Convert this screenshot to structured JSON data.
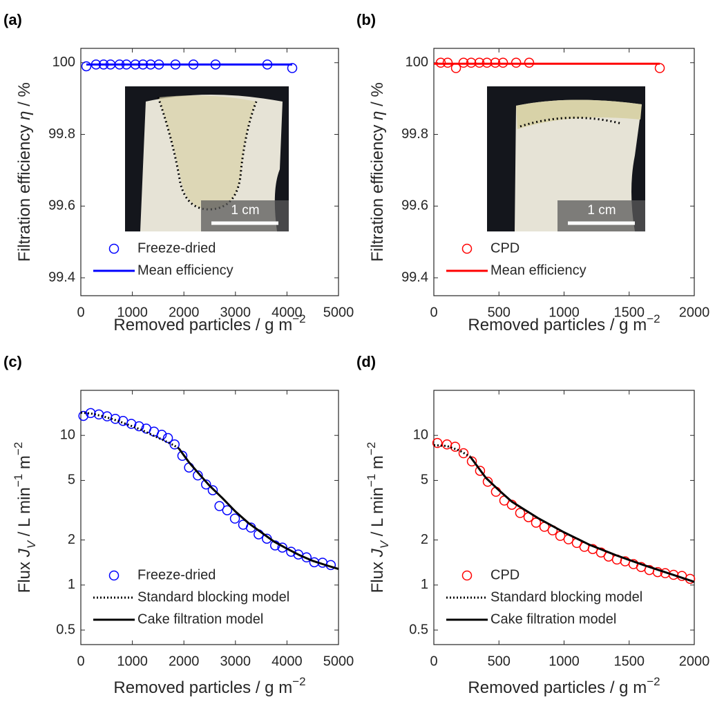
{
  "chart_data": [
    {
      "type": "line",
      "label": "(a)",
      "xlabel": [
        {
          "text": "Removed particles / g m"
        },
        {
          "text": "−2",
          "style": "sup"
        }
      ],
      "ylabel": [
        {
          "text": "Filtration efficiency "
        },
        {
          "text": "η",
          "style": "italic"
        },
        {
          "text": " / %"
        }
      ],
      "xlim": [
        0,
        5000
      ],
      "xticks": [
        0,
        1000,
        2000,
        3000,
        4000,
        5000
      ],
      "ylim": [
        99.35,
        100.04
      ],
      "yticks": [
        99.4,
        99.6,
        99.8,
        100
      ],
      "legend": "lower left",
      "inset": {
        "scale_label": "1 cm",
        "cut": "u"
      },
      "series": [
        {
          "name": "Freeze-dried",
          "color": "#0000ff",
          "marker": "circle",
          "x": [
            107,
            295,
            442,
            576,
            751,
            885,
            1059,
            1206,
            1354,
            1515,
            1836,
            2185,
            2614,
            3619,
            4102
          ],
          "values": [
            99.99,
            99.995,
            99.995,
            99.995,
            99.995,
            99.995,
            99.995,
            99.995,
            99.995,
            99.995,
            99.995,
            99.995,
            99.995,
            99.995,
            99.985
          ]
        },
        {
          "name": "Mean efficiency",
          "color": "#0000ff",
          "line": "solid",
          "x": [
            107,
            4102
          ],
          "values": [
            99.995,
            99.995
          ]
        }
      ]
    },
    {
      "type": "line",
      "label": "(b)",
      "xlabel": [
        {
          "text": "Removed particles / g m"
        },
        {
          "text": "−2",
          "style": "sup"
        }
      ],
      "ylabel": [
        {
          "text": "Filtration efficiency "
        },
        {
          "text": "η",
          "style": "italic"
        },
        {
          "text": " / %"
        }
      ],
      "xlim": [
        0,
        2000
      ],
      "xticks": [
        0,
        500,
        1000,
        1500,
        2000
      ],
      "ylim": [
        99.35,
        100.04
      ],
      "yticks": [
        99.4,
        99.6,
        99.8,
        100
      ],
      "legend": "lower left",
      "inset": {
        "scale_label": "1 cm",
        "cut": "flat"
      },
      "series": [
        {
          "name": "CPD",
          "color": "#ff0000",
          "marker": "circle",
          "x": [
            53,
            106,
            170,
            228,
            287,
            350,
            408,
            472,
            531,
            632,
            732,
            1735
          ],
          "values": [
            100,
            100,
            99.985,
            100,
            100,
            100,
            100,
            100,
            100,
            100,
            100,
            99.985
          ]
        },
        {
          "name": "Mean efficiency",
          "color": "#ff0000",
          "line": "solid",
          "x": [
            0,
            1735
          ],
          "values": [
            99.997,
            99.997
          ]
        }
      ]
    },
    {
      "type": "line",
      "label": "(c)",
      "xlabel": [
        {
          "text": "Removed particles / g m"
        },
        {
          "text": "−2",
          "style": "sup"
        }
      ],
      "ylabel": [
        {
          "text": "Flux "
        },
        {
          "text": "J",
          "style": "italic"
        },
        {
          "text": "V",
          "style": "sub-italic"
        },
        {
          "text": " / L min"
        },
        {
          "text": "−1",
          "style": "sup"
        },
        {
          "text": " m"
        },
        {
          "text": "−2",
          "style": "sup"
        }
      ],
      "xlim": [
        0,
        5000
      ],
      "xticks": [
        0,
        1000,
        2000,
        3000,
        4000,
        5000
      ],
      "yscale": "log",
      "ylim": [
        0.4,
        20
      ],
      "yticks": [
        0.5,
        1,
        2,
        5,
        10
      ],
      "legend": "lower left",
      "series": [
        {
          "name": "Freeze-dried",
          "color": "#0000ff",
          "marker": "circle",
          "x": [
            50,
            190,
            350,
            510,
            670,
            820,
            980,
            1130,
            1270,
            1420,
            1570,
            1690,
            1820,
            1970,
            2100,
            2270,
            2430,
            2560,
            2690,
            2840,
            2990,
            3150,
            3300,
            3450,
            3610,
            3770,
            3910,
            4080,
            4220,
            4380,
            4530,
            4690,
            4850
          ],
          "values": [
            13.5,
            14.1,
            13.8,
            13.4,
            12.9,
            12.5,
            11.95,
            11.5,
            11.1,
            10.6,
            10.1,
            9.6,
            8.7,
            7.3,
            6.1,
            5.4,
            4.7,
            4.3,
            3.37,
            3.16,
            2.78,
            2.53,
            2.42,
            2.18,
            2.04,
            1.84,
            1.78,
            1.67,
            1.6,
            1.53,
            1.42,
            1.41,
            1.36
          ]
        },
        {
          "name": "Standard blocking model",
          "color": "#000000",
          "line": "dotted",
          "x": [
            0,
            200,
            400,
            600,
            800,
            1000,
            1200,
            1400,
            1600,
            1800,
            1900
          ],
          "values": [
            14.2,
            14.0,
            13.5,
            12.9,
            12.2,
            11.5,
            10.8,
            10.0,
            9.3,
            8.6,
            8.2
          ]
        },
        {
          "name": "Cake filtration model",
          "color": "#000000",
          "line": "solid",
          "x": [
            1900,
            2100,
            2300,
            2500,
            2750,
            3000,
            3250,
            3500,
            3750,
            4000,
            4250,
            4500,
            4750,
            5000
          ],
          "values": [
            8.2,
            6.6,
            5.5,
            4.6,
            3.8,
            3.1,
            2.6,
            2.25,
            1.95,
            1.75,
            1.58,
            1.45,
            1.36,
            1.28
          ]
        }
      ]
    },
    {
      "type": "line",
      "label": "(d)",
      "xlabel": [
        {
          "text": "Removed particles / g m"
        },
        {
          "text": "−2",
          "style": "sup"
        }
      ],
      "ylabel": [
        {
          "text": "Flux "
        },
        {
          "text": "J",
          "style": "italic"
        },
        {
          "text": "V",
          "style": "sub-italic"
        },
        {
          "text": " / L min"
        },
        {
          "text": "−1",
          "style": "sup"
        },
        {
          "text": " m"
        },
        {
          "text": "−2",
          "style": "sup"
        }
      ],
      "xlim": [
        0,
        2000
      ],
      "xticks": [
        0,
        500,
        1000,
        1500,
        2000
      ],
      "yscale": "log",
      "ylim": [
        0.4,
        20
      ],
      "yticks": [
        0.5,
        1,
        2,
        5,
        10
      ],
      "legend": "lower left",
      "series": [
        {
          "name": "CPD",
          "color": "#ff0000",
          "marker": "circle",
          "x": [
            27,
            101,
            164,
            228,
            292,
            355,
            414,
            477,
            541,
            599,
            663,
            727,
            785,
            849,
            912,
            971,
            1034,
            1098,
            1156,
            1220,
            1284,
            1342,
            1406,
            1469,
            1533,
            1592,
            1655,
            1719,
            1777,
            1841,
            1905,
            1968
          ],
          "values": [
            8.9,
            8.7,
            8.4,
            7.6,
            6.7,
            5.8,
            4.9,
            4.2,
            3.67,
            3.44,
            3.03,
            2.84,
            2.61,
            2.45,
            2.32,
            2.13,
            2.02,
            1.91,
            1.8,
            1.74,
            1.65,
            1.55,
            1.48,
            1.44,
            1.38,
            1.32,
            1.26,
            1.22,
            1.2,
            1.17,
            1.15,
            1.1
          ]
        },
        {
          "name": "Standard blocking model",
          "color": "#000000",
          "line": "dotted",
          "x": [
            0,
            100,
            200,
            280
          ],
          "values": [
            8.6,
            8.5,
            7.9,
            7.2
          ]
        },
        {
          "name": "Cake filtration model",
          "color": "#000000",
          "line": "solid",
          "x": [
            280,
            400,
            500,
            600,
            800,
            1000,
            1200,
            1400,
            1600,
            1800,
            2000
          ],
          "values": [
            7.2,
            5.2,
            4.3,
            3.6,
            2.8,
            2.25,
            1.85,
            1.58,
            1.37,
            1.2,
            1.05
          ]
        }
      ]
    }
  ]
}
